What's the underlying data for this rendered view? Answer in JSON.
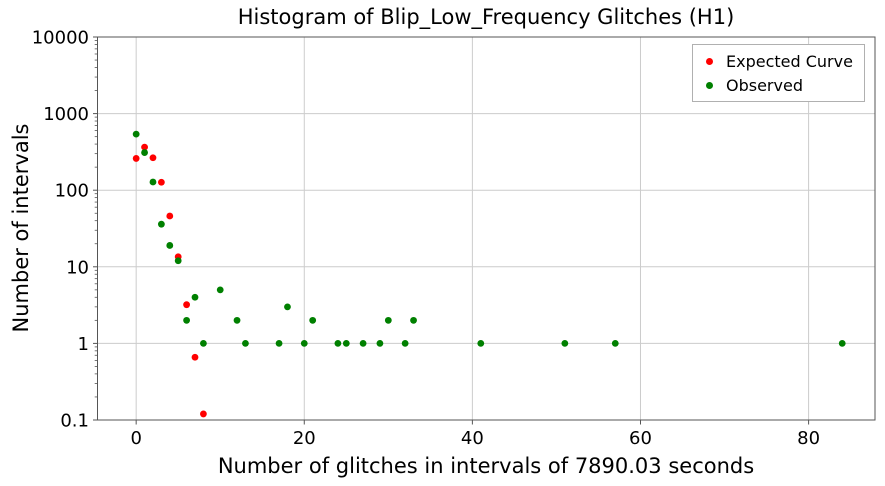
{
  "chart_data": {
    "type": "scatter",
    "title": "Histogram of Blip_Low_Frequency Glitches (H1)",
    "xlabel": "Number of glitches in intervals of 7890.03 seconds",
    "ylabel": "Number of intervals",
    "x_ticks": [
      "0",
      "20",
      "40",
      "60",
      "80"
    ],
    "y_ticks": [
      "0.1",
      "1",
      "10",
      "100",
      "1000",
      "10000"
    ],
    "y_scale": "log",
    "x_scale": "linear",
    "xlim": [
      -4.6,
      87.9
    ],
    "ylim": [
      0.1,
      10000
    ],
    "grid": true,
    "background_color": "#ffffff",
    "grid_color": "#cccccc",
    "axes_color": "#555555",
    "legend": {
      "position": "upper-right",
      "entries": [
        {
          "label": "Expected Curve",
          "color": "#ff0000"
        },
        {
          "label": "Observed",
          "color": "#008000"
        }
      ]
    },
    "series": [
      {
        "name": "Expected Curve",
        "color": "#ff0000",
        "marker": "dot",
        "points": [
          [
            0,
            260
          ],
          [
            1,
            365
          ],
          [
            2,
            265
          ],
          [
            3,
            127
          ],
          [
            4,
            46
          ],
          [
            5,
            13.5
          ],
          [
            6,
            3.2
          ],
          [
            7,
            0.66
          ],
          [
            8,
            0.12
          ]
        ]
      },
      {
        "name": "Observed",
        "color": "#008000",
        "marker": "dot",
        "points": [
          [
            0,
            540
          ],
          [
            1,
            310
          ],
          [
            2,
            128
          ],
          [
            3,
            36
          ],
          [
            4,
            19
          ],
          [
            5,
            12
          ],
          [
            6,
            2
          ],
          [
            7,
            4
          ],
          [
            8,
            1
          ],
          [
            10,
            5
          ],
          [
            12,
            2
          ],
          [
            13,
            1
          ],
          [
            17,
            1
          ],
          [
            18,
            3
          ],
          [
            20,
            1
          ],
          [
            21,
            2
          ],
          [
            24,
            1
          ],
          [
            25,
            1
          ],
          [
            27,
            1
          ],
          [
            29,
            1
          ],
          [
            30,
            2
          ],
          [
            32,
            1
          ],
          [
            33,
            2
          ],
          [
            41,
            1
          ],
          [
            51,
            1
          ],
          [
            57,
            1
          ],
          [
            84,
            1
          ]
        ]
      }
    ]
  }
}
